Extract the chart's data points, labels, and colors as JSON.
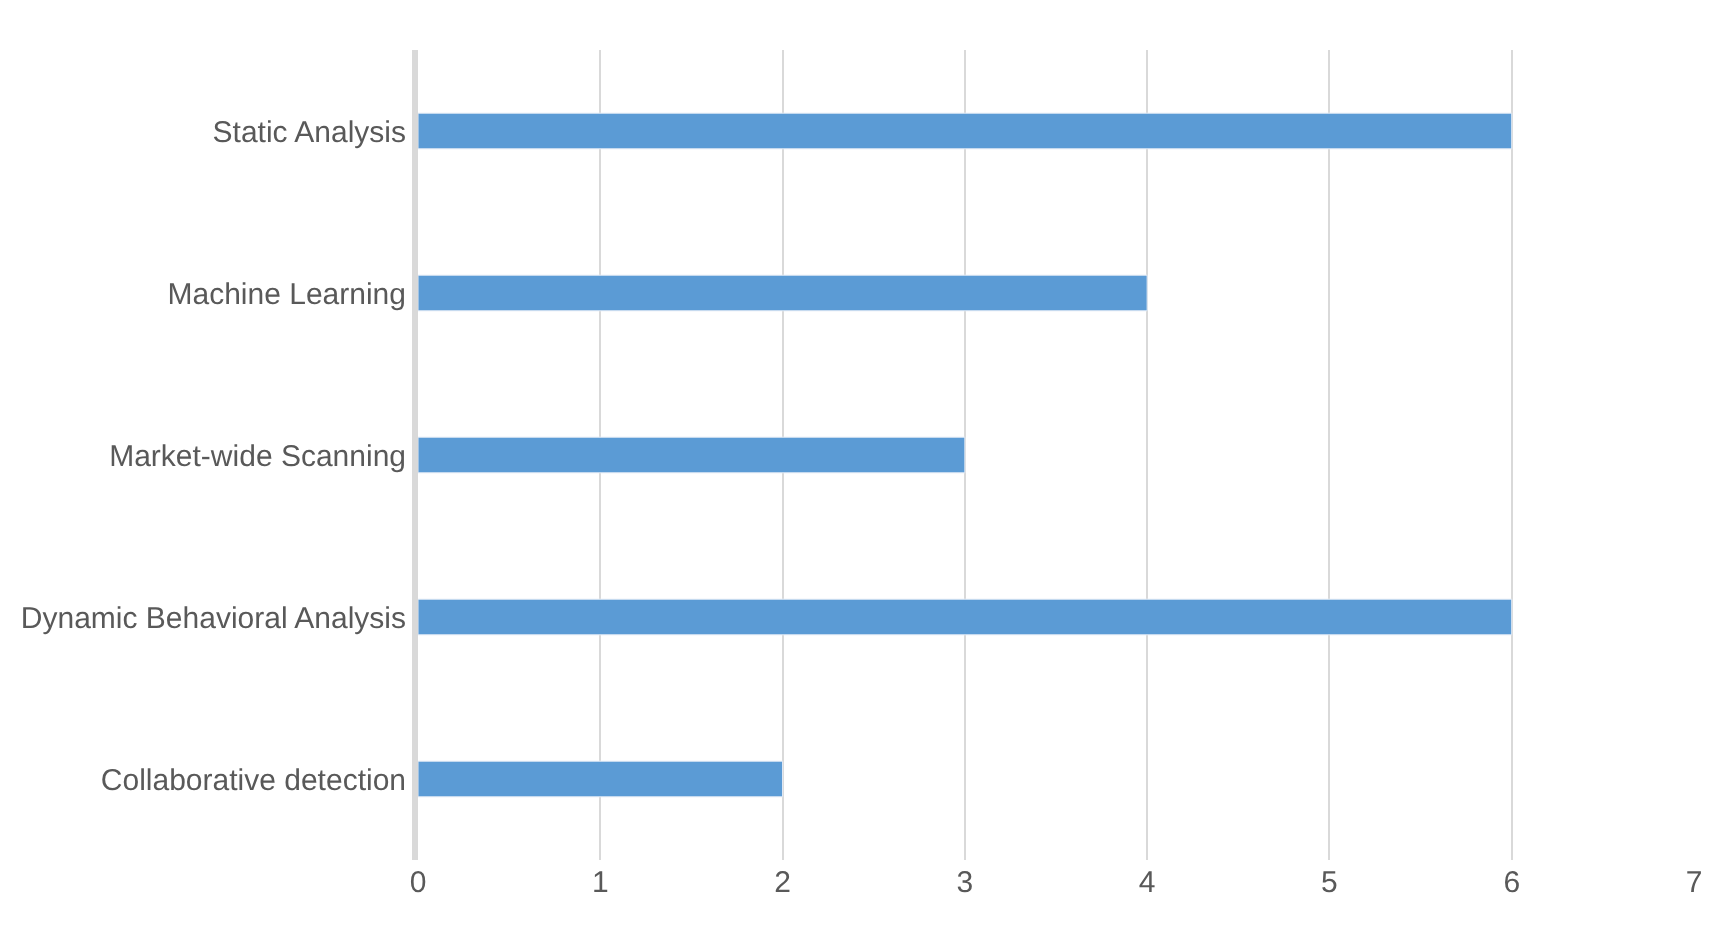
{
  "chart_data": {
    "type": "bar",
    "orientation": "horizontal",
    "categories": [
      "Static Analysis",
      "Machine Learning",
      "Market-wide Scanning",
      "Dynamic Behavioral Analysis",
      "Collaborative detection"
    ],
    "values": [
      6,
      4,
      3,
      6,
      2
    ],
    "color": "#5b9bd5",
    "xlim": [
      0,
      7
    ],
    "xticks": [
      0,
      1,
      2,
      3,
      4,
      5,
      6,
      7
    ],
    "grid": "x",
    "legend": false
  }
}
